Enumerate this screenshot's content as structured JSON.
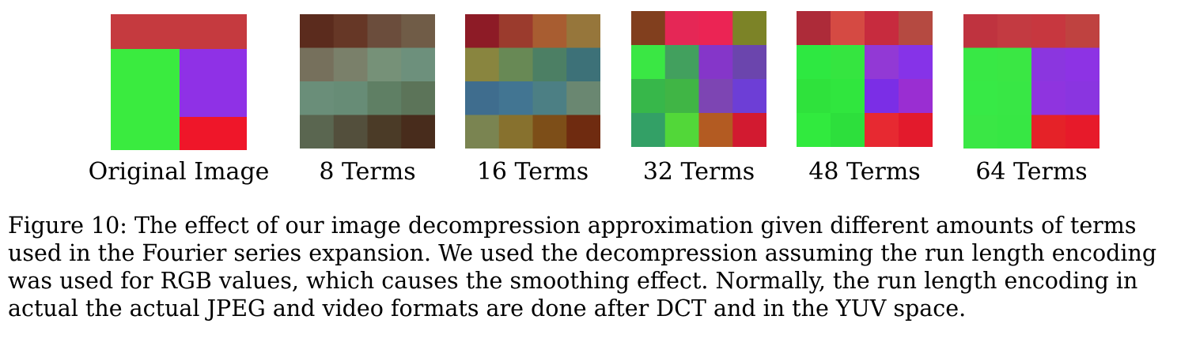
{
  "panels": [
    {
      "label": "Original Image",
      "kind": "original",
      "colors": {
        "top": "#c53a3f",
        "left": "#3aeb3f",
        "right_top": "#8f31e6",
        "right_bottom": "#ef1629"
      }
    },
    {
      "label": "8 Terms",
      "kind": "grid",
      "rows": 4,
      "cols": 4,
      "cells": [
        "#5b2b1d",
        "#663726",
        "#6b4d3c",
        "#705c47",
        "#76705c",
        "#7a806a",
        "#769178",
        "#6d907c",
        "#6a8e79",
        "#678c76",
        "#5f7f64",
        "#5c7459",
        "#5a6650",
        "#534f3c",
        "#4b3b27",
        "#482c1c"
      ]
    },
    {
      "label": "16 Terms",
      "kind": "grid",
      "rows": 4,
      "cols": 4,
      "cells": [
        "#8d1b26",
        "#9b3b2d",
        "#a85d31",
        "#96763b",
        "#89853f",
        "#688955",
        "#4c7f64",
        "#3d7178",
        "#3f6d8e",
        "#427592",
        "#4c7f84",
        "#6a8771",
        "#7a8451",
        "#87712e",
        "#7d4e18",
        "#6f2b10"
      ]
    },
    {
      "label": "32 Terms",
      "kind": "grid",
      "rows": 4,
      "cols": 4,
      "cells": [
        "#813f1e",
        "#e52756",
        "#eb2454",
        "#7c8327",
        "#3ae744",
        "#42a05e",
        "#8536c9",
        "#6b45ad",
        "#37b74a",
        "#40b545",
        "#7d45b3",
        "#6d3ed6",
        "#33a066",
        "#52d739",
        "#b35b22",
        "#d21a30"
      ]
    },
    {
      "label": "48 Terms",
      "kind": "grid",
      "rows": 4,
      "cols": 4,
      "cells": [
        "#ad2b39",
        "#d54a43",
        "#c72b3e",
        "#b54a41",
        "#2ee841",
        "#35e540",
        "#9239d5",
        "#8633e8",
        "#2fe23c",
        "#30e63e",
        "#7b2ee6",
        "#9a2ed2",
        "#31ea3e",
        "#2ddf3c",
        "#e72931",
        "#e31a2c"
      ]
    },
    {
      "label": "64 Terms",
      "kind": "grid",
      "rows": 4,
      "cols": 4,
      "cells": [
        "#bf333f",
        "#c33a41",
        "#c7373f",
        "#bf4240",
        "#38e845",
        "#3ae744",
        "#8b36df",
        "#8d33e4",
        "#37e946",
        "#38e745",
        "#8f34df",
        "#8a35e0",
        "#3ae745",
        "#37e744",
        "#e52228",
        "#e71a2a"
      ]
    }
  ],
  "caption_lines": [
    "Figure 10: The effect of our image decompression approximation given different amounts of terms",
    "used in the Fourier series expansion. We used the decompression assuming the run length encoding",
    "was used for RGB values, which causes the smoothing effect. Normally, the run length encoding in",
    "actual the actual JPEG and video formats are done after DCT and in the YUV space."
  ]
}
